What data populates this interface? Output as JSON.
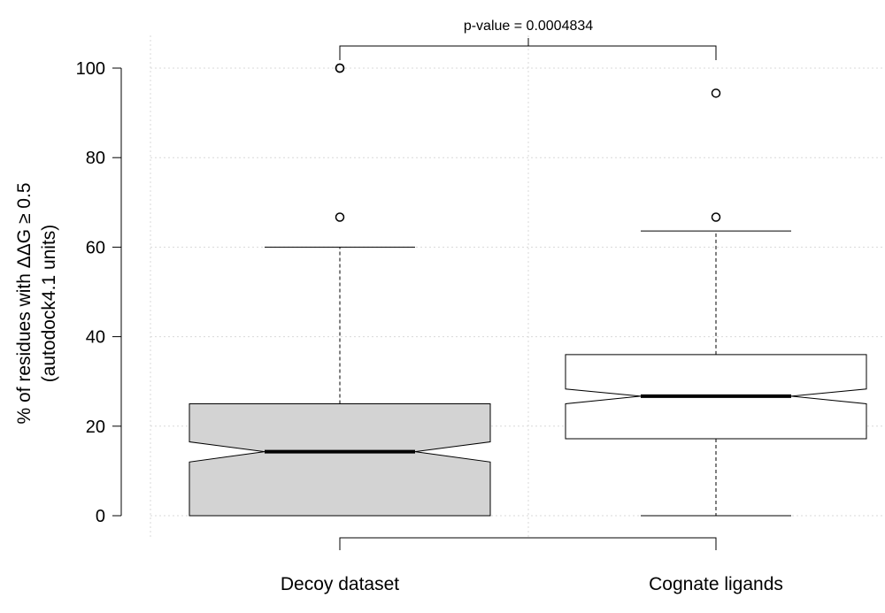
{
  "chart_data": {
    "type": "boxplot",
    "title": "",
    "xlabel": "",
    "ylabel_lines": [
      "% of residues with ΔΔG ≥ 0.5",
      "(autodock4.1 units)"
    ],
    "ylim": [
      0,
      100
    ],
    "yticks": [
      0,
      20,
      40,
      60,
      80,
      100
    ],
    "grid": true,
    "notched": true,
    "annotation": "p-value = 0.0004834",
    "categories": [
      "Decoy dataset",
      "Cognate ligands"
    ],
    "boxes": [
      {
        "category": "Decoy dataset",
        "fill": "#d3d3d3",
        "whisker_low": 0,
        "q1": 0,
        "notch_low": 12.0,
        "median": 14.3,
        "notch_high": 16.5,
        "q3": 25,
        "whisker_high": 60,
        "outliers": [
          66.7,
          100,
          100
        ]
      },
      {
        "category": "Cognate ligands",
        "fill": "#ffffff",
        "whisker_low": 0,
        "q1": 17.2,
        "notch_low": 25.0,
        "median": 26.7,
        "notch_high": 28.3,
        "q3": 36,
        "whisker_high": 63.6,
        "outliers": [
          66.7,
          94.4
        ]
      }
    ]
  }
}
